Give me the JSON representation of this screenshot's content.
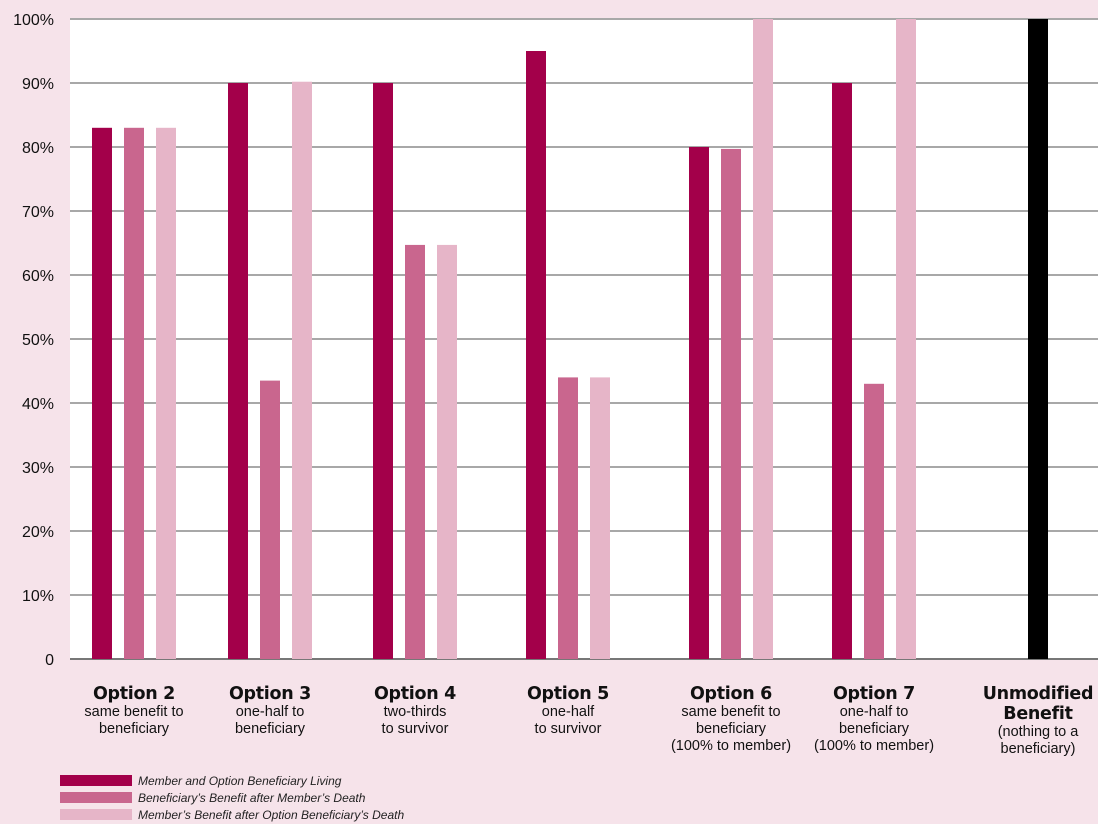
{
  "chart_data": {
    "type": "bar",
    "title": "",
    "xlabel": "",
    "ylabel": "",
    "ylim": [
      0,
      100
    ],
    "yticks": [
      {
        "value": 0,
        "label": "0"
      },
      {
        "value": 10,
        "label": "10%"
      },
      {
        "value": 20,
        "label": "20%"
      },
      {
        "value": 30,
        "label": "30%"
      },
      {
        "value": 40,
        "label": "40%"
      },
      {
        "value": 50,
        "label": "50%"
      },
      {
        "value": 60,
        "label": "60%"
      },
      {
        "value": 70,
        "label": "70%"
      },
      {
        "value": 80,
        "label": "80%"
      },
      {
        "value": 90,
        "label": "90%"
      },
      {
        "value": 100,
        "label": "100%"
      }
    ],
    "grid": true,
    "legend_position": "bottom-left",
    "categories": [
      {
        "name": "Option 2",
        "sub": "same benefit to\nbeneficiary"
      },
      {
        "name": "Option 3",
        "sub": "one-half to\nbeneficiary"
      },
      {
        "name": "Option 4",
        "sub": "two-thirds\nto survivor"
      },
      {
        "name": "Option 5",
        "sub": "one-half\nto survivor"
      },
      {
        "name": "Option 6",
        "sub": "same benefit to\nbeneficiary\n(100% to member)"
      },
      {
        "name": "Option 7",
        "sub": "one-half to\nbeneficiary\n(100% to member)"
      },
      {
        "name": "Unmodified\nBenefit",
        "sub": "(nothing to a\nbeneficiary)"
      }
    ],
    "series": [
      {
        "name": "Member and Option Beneficiary Living",
        "color": "#a3004a",
        "values": [
          83,
          90,
          90,
          95,
          80,
          90,
          null
        ]
      },
      {
        "name": "Beneficiary’s Benefit after Member’s Death",
        "color": "#c9668e",
        "values": [
          83,
          43.5,
          64.7,
          44,
          79.7,
          43,
          null
        ]
      },
      {
        "name": "Member’s Benefit after Option Beneficiary’s Death",
        "color": "#e6b5c8",
        "values": [
          83,
          90.2,
          64.7,
          44,
          100,
          100,
          null
        ]
      },
      {
        "name": "",
        "color": "#000000",
        "values": [
          null,
          null,
          null,
          null,
          null,
          null,
          100
        ]
      }
    ]
  }
}
